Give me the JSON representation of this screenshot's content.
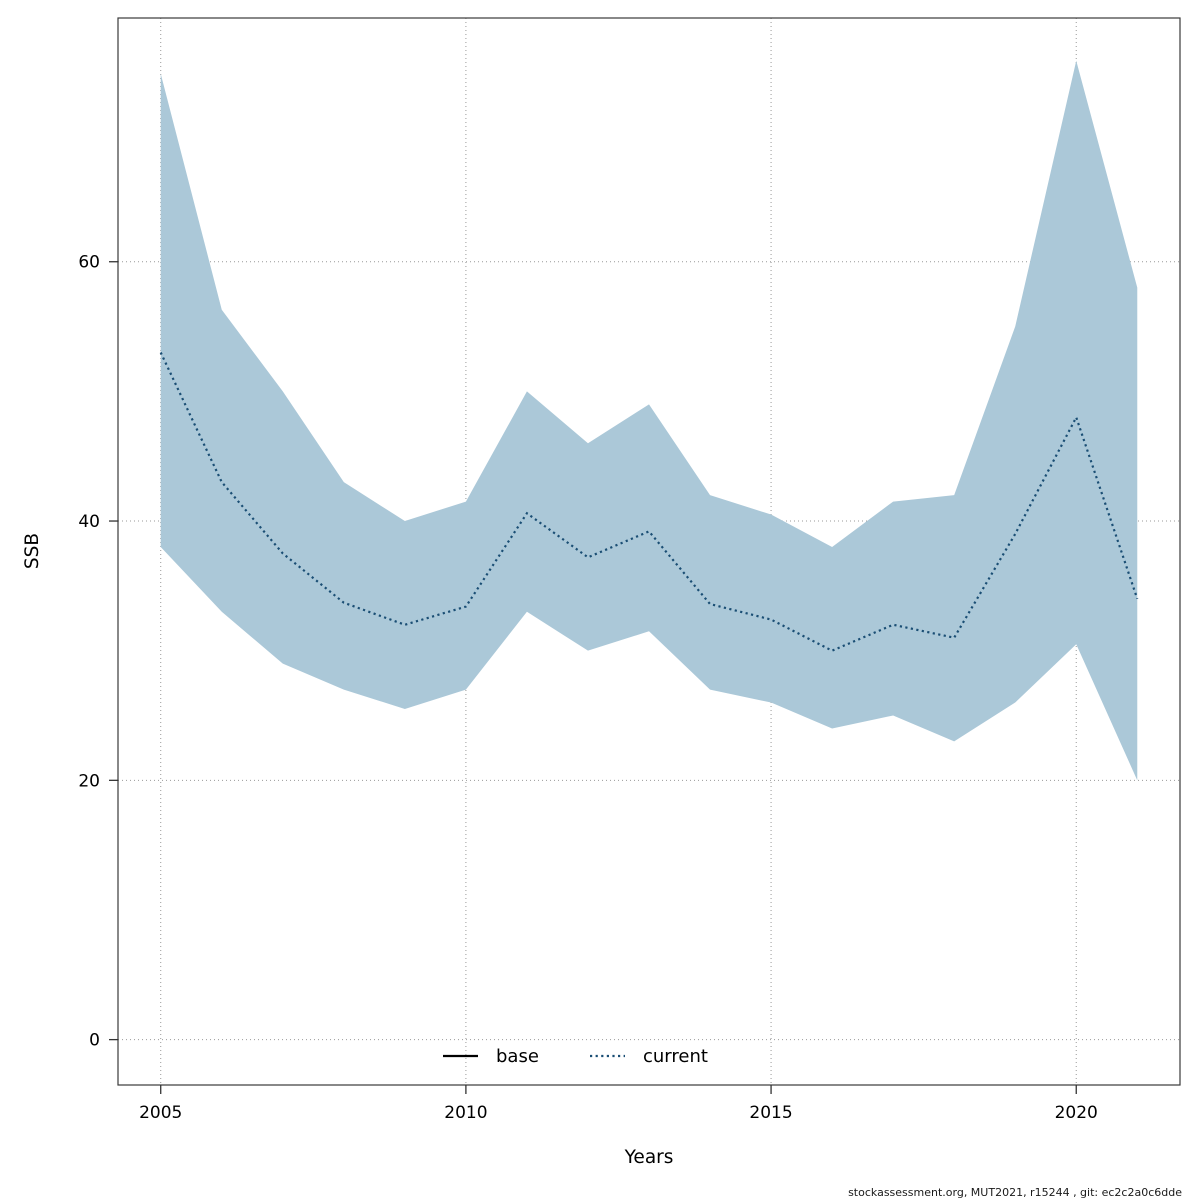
{
  "chart_data": {
    "type": "line",
    "title": "",
    "xlabel": "Years",
    "ylabel": "SSB",
    "x": [
      2005,
      2006,
      2007,
      2008,
      2009,
      2010,
      2011,
      2012,
      2013,
      2014,
      2015,
      2016,
      2017,
      2018,
      2019,
      2020,
      2021
    ],
    "series": [
      {
        "name": "current",
        "style": "dotted",
        "color": "#1a4e74",
        "values": [
          53,
          43,
          37.5,
          33.7,
          32,
          33.4,
          40.6,
          37.2,
          39.2,
          33.6,
          32.4,
          30,
          32,
          31,
          39,
          48,
          34
        ]
      }
    ],
    "band": {
      "name": "confidence-interval",
      "color": "#abc8d8",
      "upper": [
        74.5,
        56.3,
        50,
        43,
        40,
        41.5,
        50,
        46,
        49,
        42,
        40.5,
        38,
        41.5,
        42,
        55,
        75.5,
        58
      ],
      "lower": [
        38,
        33,
        29,
        27,
        25.5,
        27,
        33,
        30,
        31.5,
        27,
        26,
        24,
        25,
        23,
        26,
        30.5,
        20
      ]
    },
    "legend": [
      {
        "label": "base",
        "style": "solid",
        "color": "#000000"
      },
      {
        "label": "current",
        "style": "dotted",
        "color": "#1a4e74"
      }
    ],
    "legend_position": "bottom-center-inside",
    "x_ticks": [
      2005,
      2010,
      2015,
      2020
    ],
    "y_ticks": [
      0,
      20,
      40,
      60
    ],
    "xlim": [
      2004.3,
      2021.7
    ],
    "ylim": [
      -3.5,
      78.8
    ],
    "grid": "dotted"
  },
  "footer": {
    "text": "stockassessment.org, MUT2021, r15244 , git: ec2c2a0c6dde"
  }
}
